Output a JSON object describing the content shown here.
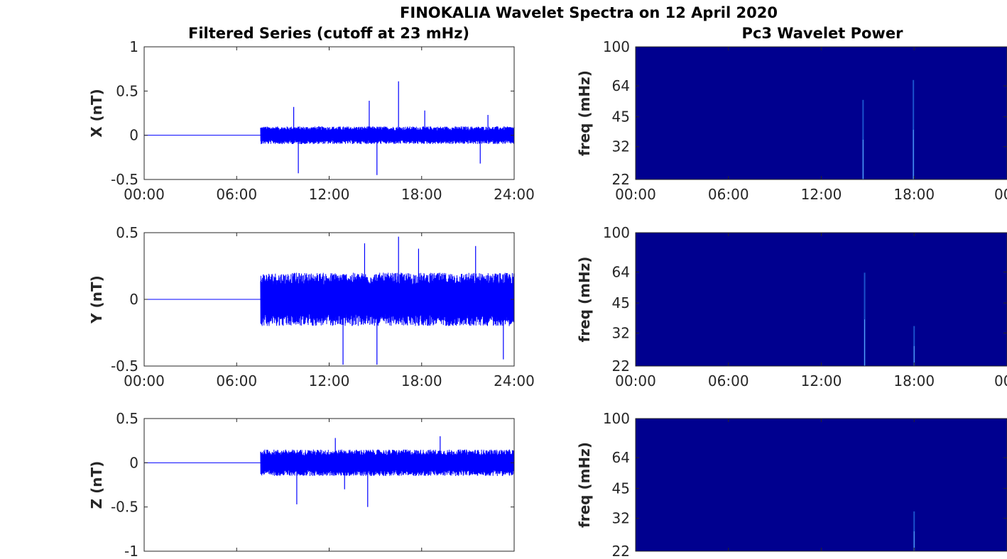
{
  "title": "FINOKALIA Wavelet Spectra on 12 April 2020",
  "colors": {
    "trace": "#0000ff",
    "power_bg": "#00008f",
    "axis": "#262626"
  },
  "chart_data": [
    {
      "type": "line",
      "title": "Filtered Series (cutoff at 23 mHz)",
      "ylabel": "X (nT)",
      "xlim": [
        0,
        24
      ],
      "ylim": [
        -0.5,
        1
      ],
      "xticklabels": [
        "00:00",
        "06:00",
        "12:00",
        "18:00",
        "24:00"
      ],
      "yticks": [
        -0.5,
        0,
        0.5,
        1
      ],
      "yticklabels": [
        "-0.5",
        "0",
        "0.5",
        "1"
      ],
      "series": [
        {
          "onset_hour": 7.55,
          "envelope": [
            0.1,
            0.1
          ],
          "spikes": [
            [
              9.7,
              0.32
            ],
            [
              10,
              -0.43
            ],
            [
              14.6,
              0.39
            ],
            [
              15.1,
              -0.45
            ],
            [
              16.5,
              0.61
            ],
            [
              18.2,
              0.28
            ],
            [
              21.8,
              -0.32
            ],
            [
              22.3,
              0.23
            ]
          ]
        }
      ]
    },
    {
      "type": "heatmap",
      "title": "Pc3 Wavelet Power",
      "ylabel": "freq (mHz)",
      "xlim": [
        0,
        24
      ],
      "ylim": [
        22,
        100
      ],
      "yscale": "log",
      "xticklabels": [
        "00:00",
        "06:00",
        "12:00",
        "18:00",
        "00"
      ],
      "yticks": [
        22,
        32,
        45,
        64,
        100
      ],
      "yticklabels": [
        "22",
        "32",
        "45",
        "64",
        "100"
      ],
      "bursts": [
        [
          14.7,
          0.6
        ],
        [
          17.95,
          0.75
        ]
      ]
    },
    {
      "type": "line",
      "ylabel": "Y (nT)",
      "xlim": [
        0,
        24
      ],
      "ylim": [
        -0.5,
        0.5
      ],
      "xticklabels": [
        "00:00",
        "06:00",
        "12:00",
        "18:00",
        "24:00"
      ],
      "yticks": [
        -0.5,
        0,
        0.5
      ],
      "yticklabels": [
        "-0.5",
        "0",
        "0.5"
      ],
      "series": [
        {
          "onset_hour": 7.55,
          "envelope": [
            0.2,
            0.2
          ],
          "spikes": [
            [
              12.9,
              -0.49
            ],
            [
              14.3,
              0.42
            ],
            [
              15.1,
              -0.49
            ],
            [
              16.5,
              0.47
            ],
            [
              17.8,
              0.38
            ],
            [
              21.5,
              0.4
            ],
            [
              23.3,
              -0.45
            ]
          ]
        }
      ]
    },
    {
      "type": "heatmap",
      "ylabel": "freq (mHz)",
      "xlim": [
        0,
        24
      ],
      "ylim": [
        22,
        100
      ],
      "yscale": "log",
      "xticklabels": [
        "00:00",
        "06:00",
        "12:00",
        "18:00",
        "00"
      ],
      "yticks": [
        22,
        32,
        45,
        64,
        100
      ],
      "yticklabels": [
        "22",
        "32",
        "45",
        "64",
        "100"
      ],
      "bursts": [
        [
          14.8,
          0.7
        ],
        [
          18,
          0.3
        ]
      ]
    },
    {
      "type": "line",
      "ylabel": "Z (nT)",
      "xlim": [
        0,
        24
      ],
      "ylim": [
        -1,
        0.5
      ],
      "xticklabels": [],
      "yticks": [
        -1,
        -0.5,
        0,
        0.5
      ],
      "yticklabels": [
        "-1",
        "-0.5",
        "0",
        "0.5"
      ],
      "series": [
        {
          "onset_hour": 7.55,
          "envelope": [
            0.15,
            0.15
          ],
          "spikes": [
            [
              9.9,
              -0.47
            ],
            [
              13,
              -0.3
            ],
            [
              14.5,
              -0.5
            ],
            [
              12.4,
              0.28
            ],
            [
              19.2,
              0.3
            ]
          ]
        }
      ]
    },
    {
      "type": "heatmap",
      "ylabel": "freq (mHz)",
      "xlim": [
        0,
        24
      ],
      "ylim": [
        22,
        100
      ],
      "yscale": "log",
      "xticklabels": [],
      "yticks": [
        22,
        32,
        45,
        64,
        100
      ],
      "yticklabels": [
        "22",
        "32",
        "45",
        "64",
        "100"
      ],
      "bursts": [
        [
          18,
          0.3
        ]
      ]
    }
  ]
}
